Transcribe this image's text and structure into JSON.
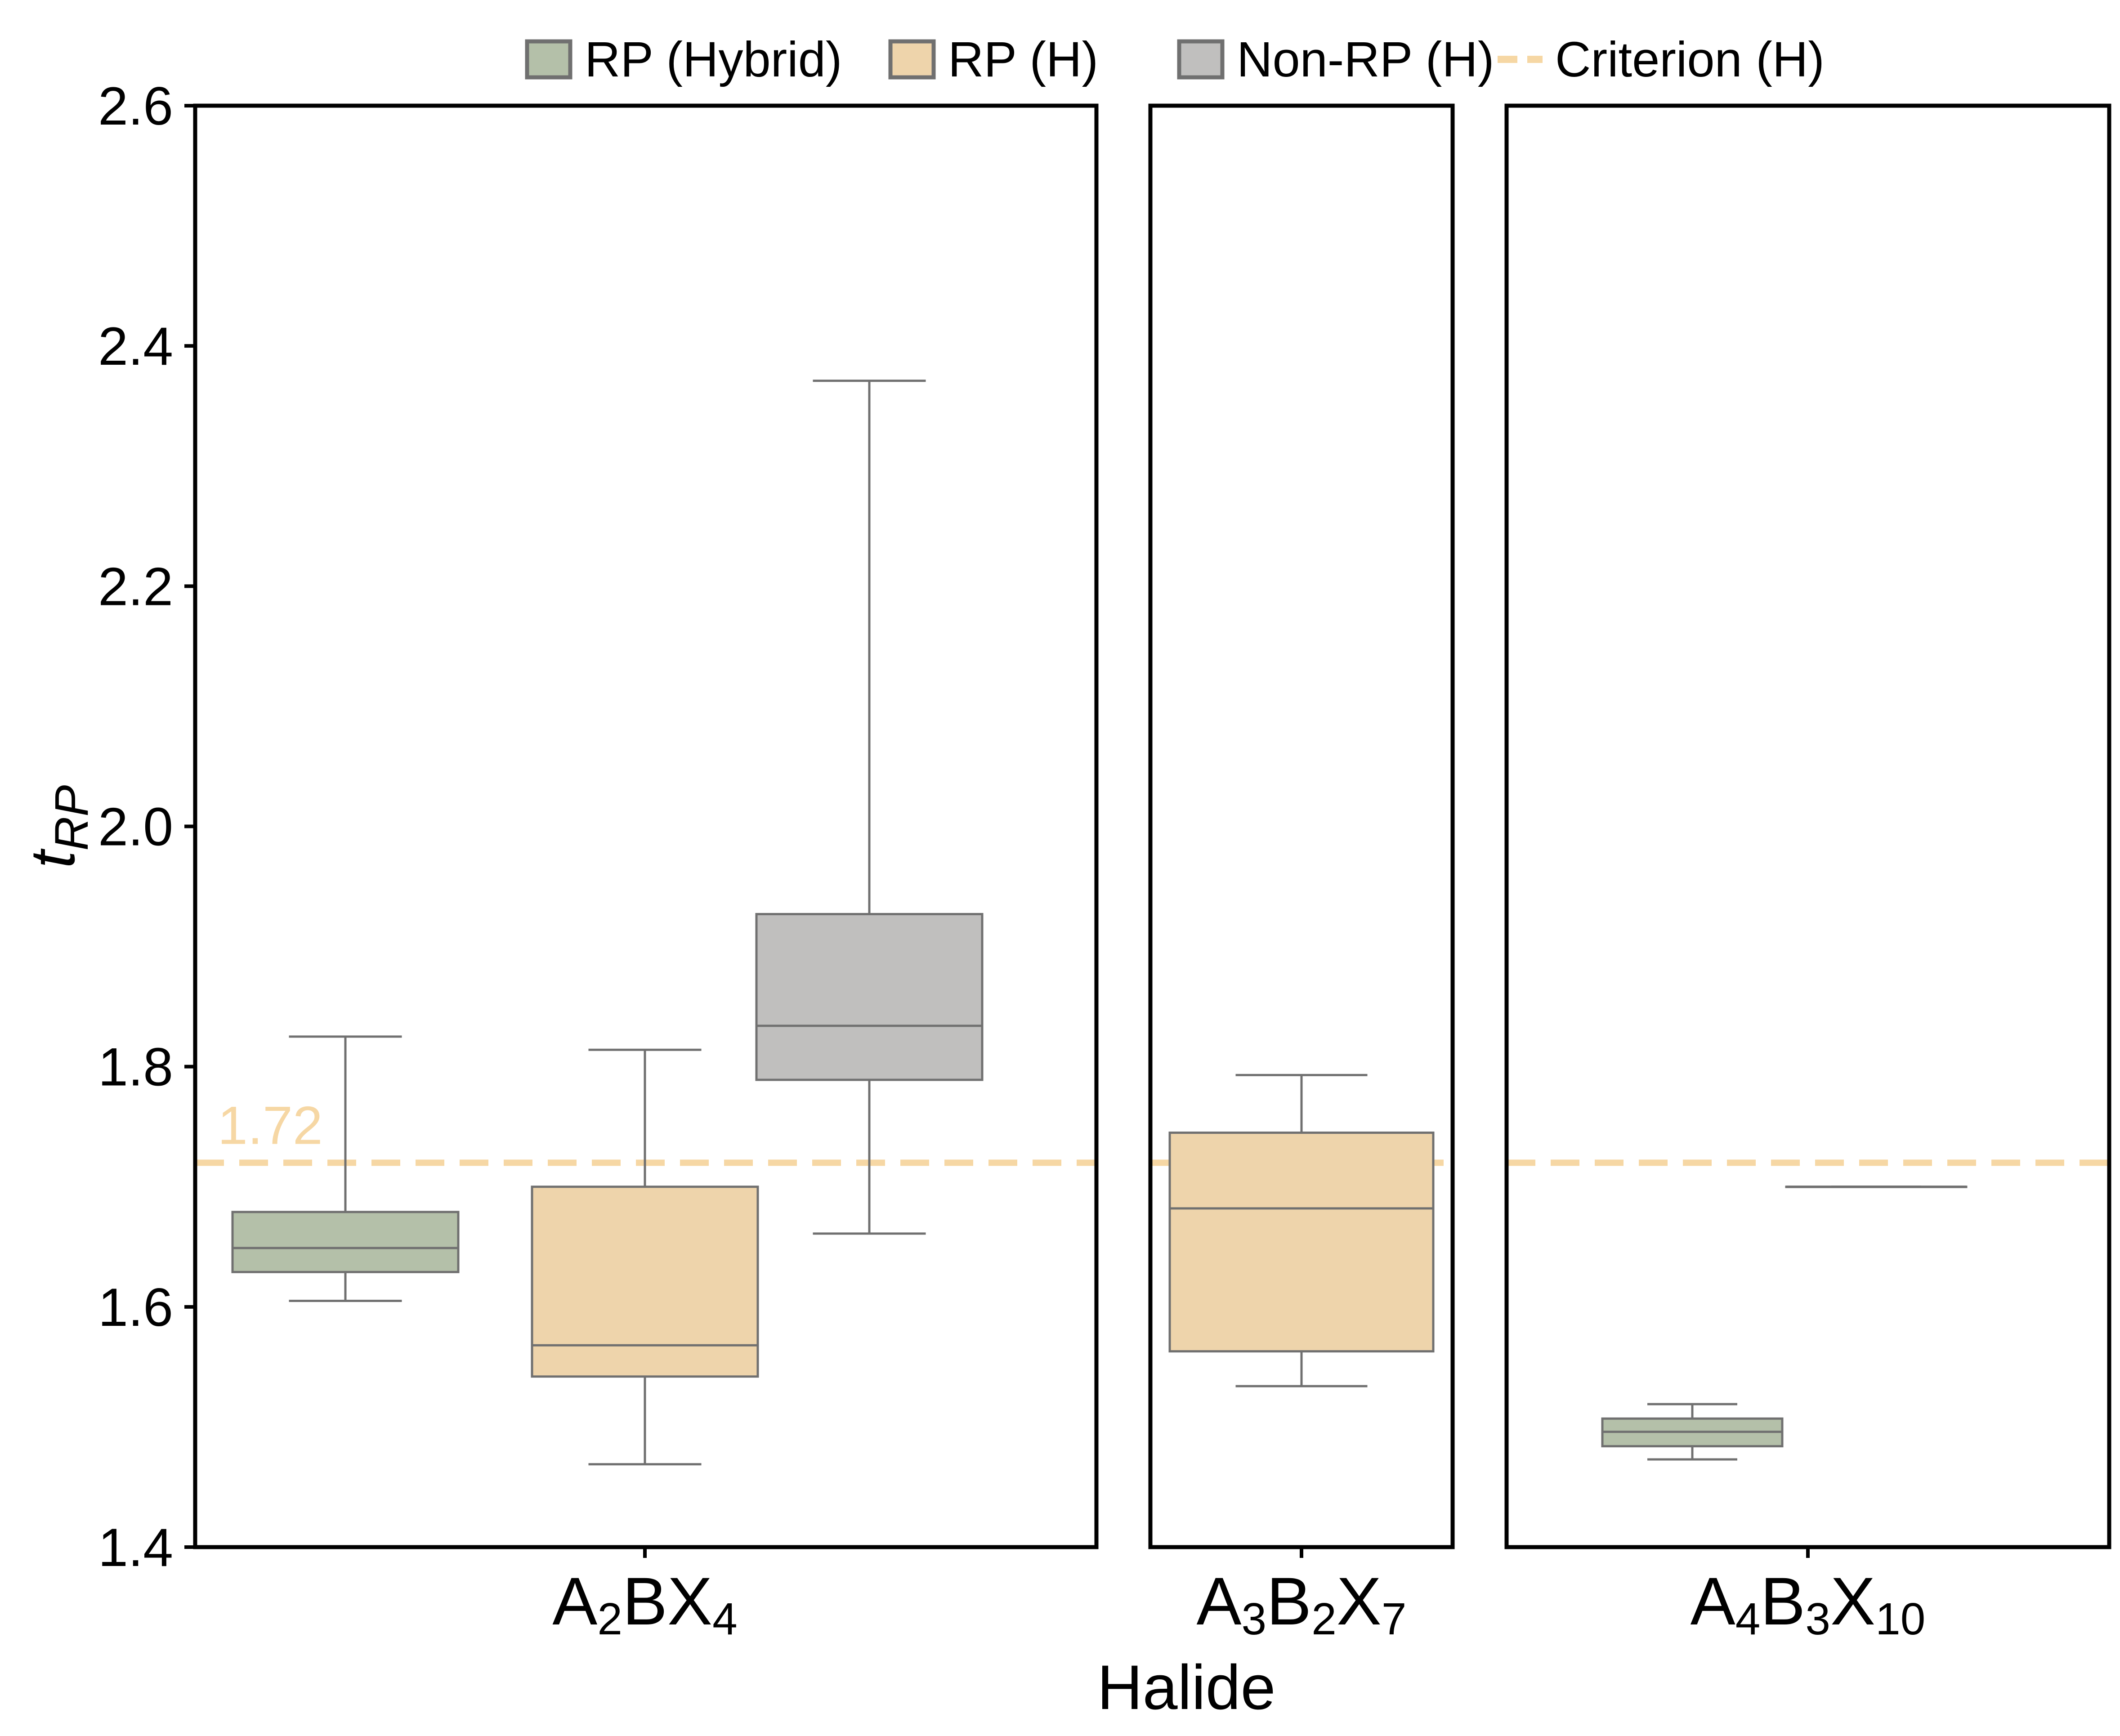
{
  "chart_data": {
    "type": "box",
    "ylabel": {
      "main": "t",
      "sub": "RP"
    },
    "xlabel": "Halide",
    "ylim": [
      1.4,
      2.6
    ],
    "yticks": [
      "1.4",
      "1.6",
      "1.8",
      "2.0",
      "2.2",
      "2.4",
      "2.6"
    ],
    "criterion": {
      "value": 1.72,
      "label": "1.72"
    },
    "legend": [
      {
        "label": "RP (Hybrid)",
        "color": "#b4c0a9",
        "kind": "box"
      },
      {
        "label": "RP (H)",
        "color": "#eed4ab",
        "kind": "box"
      },
      {
        "label": "Non-RP (H)",
        "color": "#c0bfbe",
        "kind": "box"
      },
      {
        "label": "Criterion (H)",
        "color": "#f6d7a4",
        "kind": "dash"
      }
    ],
    "panels": [
      {
        "category": {
          "parts": [
            [
              "A",
              ""
            ],
            [
              "2",
              "sub"
            ],
            [
              "BX",
              ""
            ],
            [
              "4",
              "sub"
            ]
          ]
        },
        "boxes": [
          {
            "series": "RP (Hybrid)",
            "min": 1.605,
            "q1": 1.629,
            "median": 1.649,
            "q3": 1.679,
            "max": 1.825
          },
          {
            "series": "RP (H)",
            "min": 1.469,
            "q1": 1.542,
            "median": 1.568,
            "q3": 1.7,
            "max": 1.814
          },
          {
            "series": "Non-RP (H)",
            "min": 1.661,
            "q1": 1.789,
            "median": 1.834,
            "q3": 1.927,
            "max": 2.371
          }
        ]
      },
      {
        "category": {
          "parts": [
            [
              "A",
              ""
            ],
            [
              "3",
              "sub"
            ],
            [
              "B",
              ""
            ],
            [
              "2",
              "sub"
            ],
            [
              "X",
              ""
            ],
            [
              "7",
              "sub"
            ]
          ]
        },
        "boxes": [
          {
            "series": "RP (H)",
            "min": 1.534,
            "q1": 1.563,
            "median": 1.682,
            "q3": 1.745,
            "max": 1.793
          }
        ]
      },
      {
        "category": {
          "parts": [
            [
              "A",
              ""
            ],
            [
              "4",
              "sub"
            ],
            [
              "B",
              ""
            ],
            [
              "3",
              "sub"
            ],
            [
              "X",
              ""
            ],
            [
              "10",
              "sub"
            ]
          ]
        },
        "boxes": [
          {
            "series": "RP (Hybrid)",
            "min": 1.473,
            "q1": 1.484,
            "median": 1.496,
            "q3": 1.507,
            "max": 1.519
          },
          {
            "series": "Non-RP (H)",
            "min": 1.7,
            "q1": 1.7,
            "median": 1.7,
            "q3": 1.7,
            "max": 1.7
          }
        ]
      }
    ],
    "colors": {
      "RP (Hybrid)": "#b4c0a9",
      "RP (H)": "#eed4ab",
      "Non-RP (H)": "#c0bfbe",
      "criterion": "#f6d7a4",
      "whisker": "#707070"
    }
  }
}
